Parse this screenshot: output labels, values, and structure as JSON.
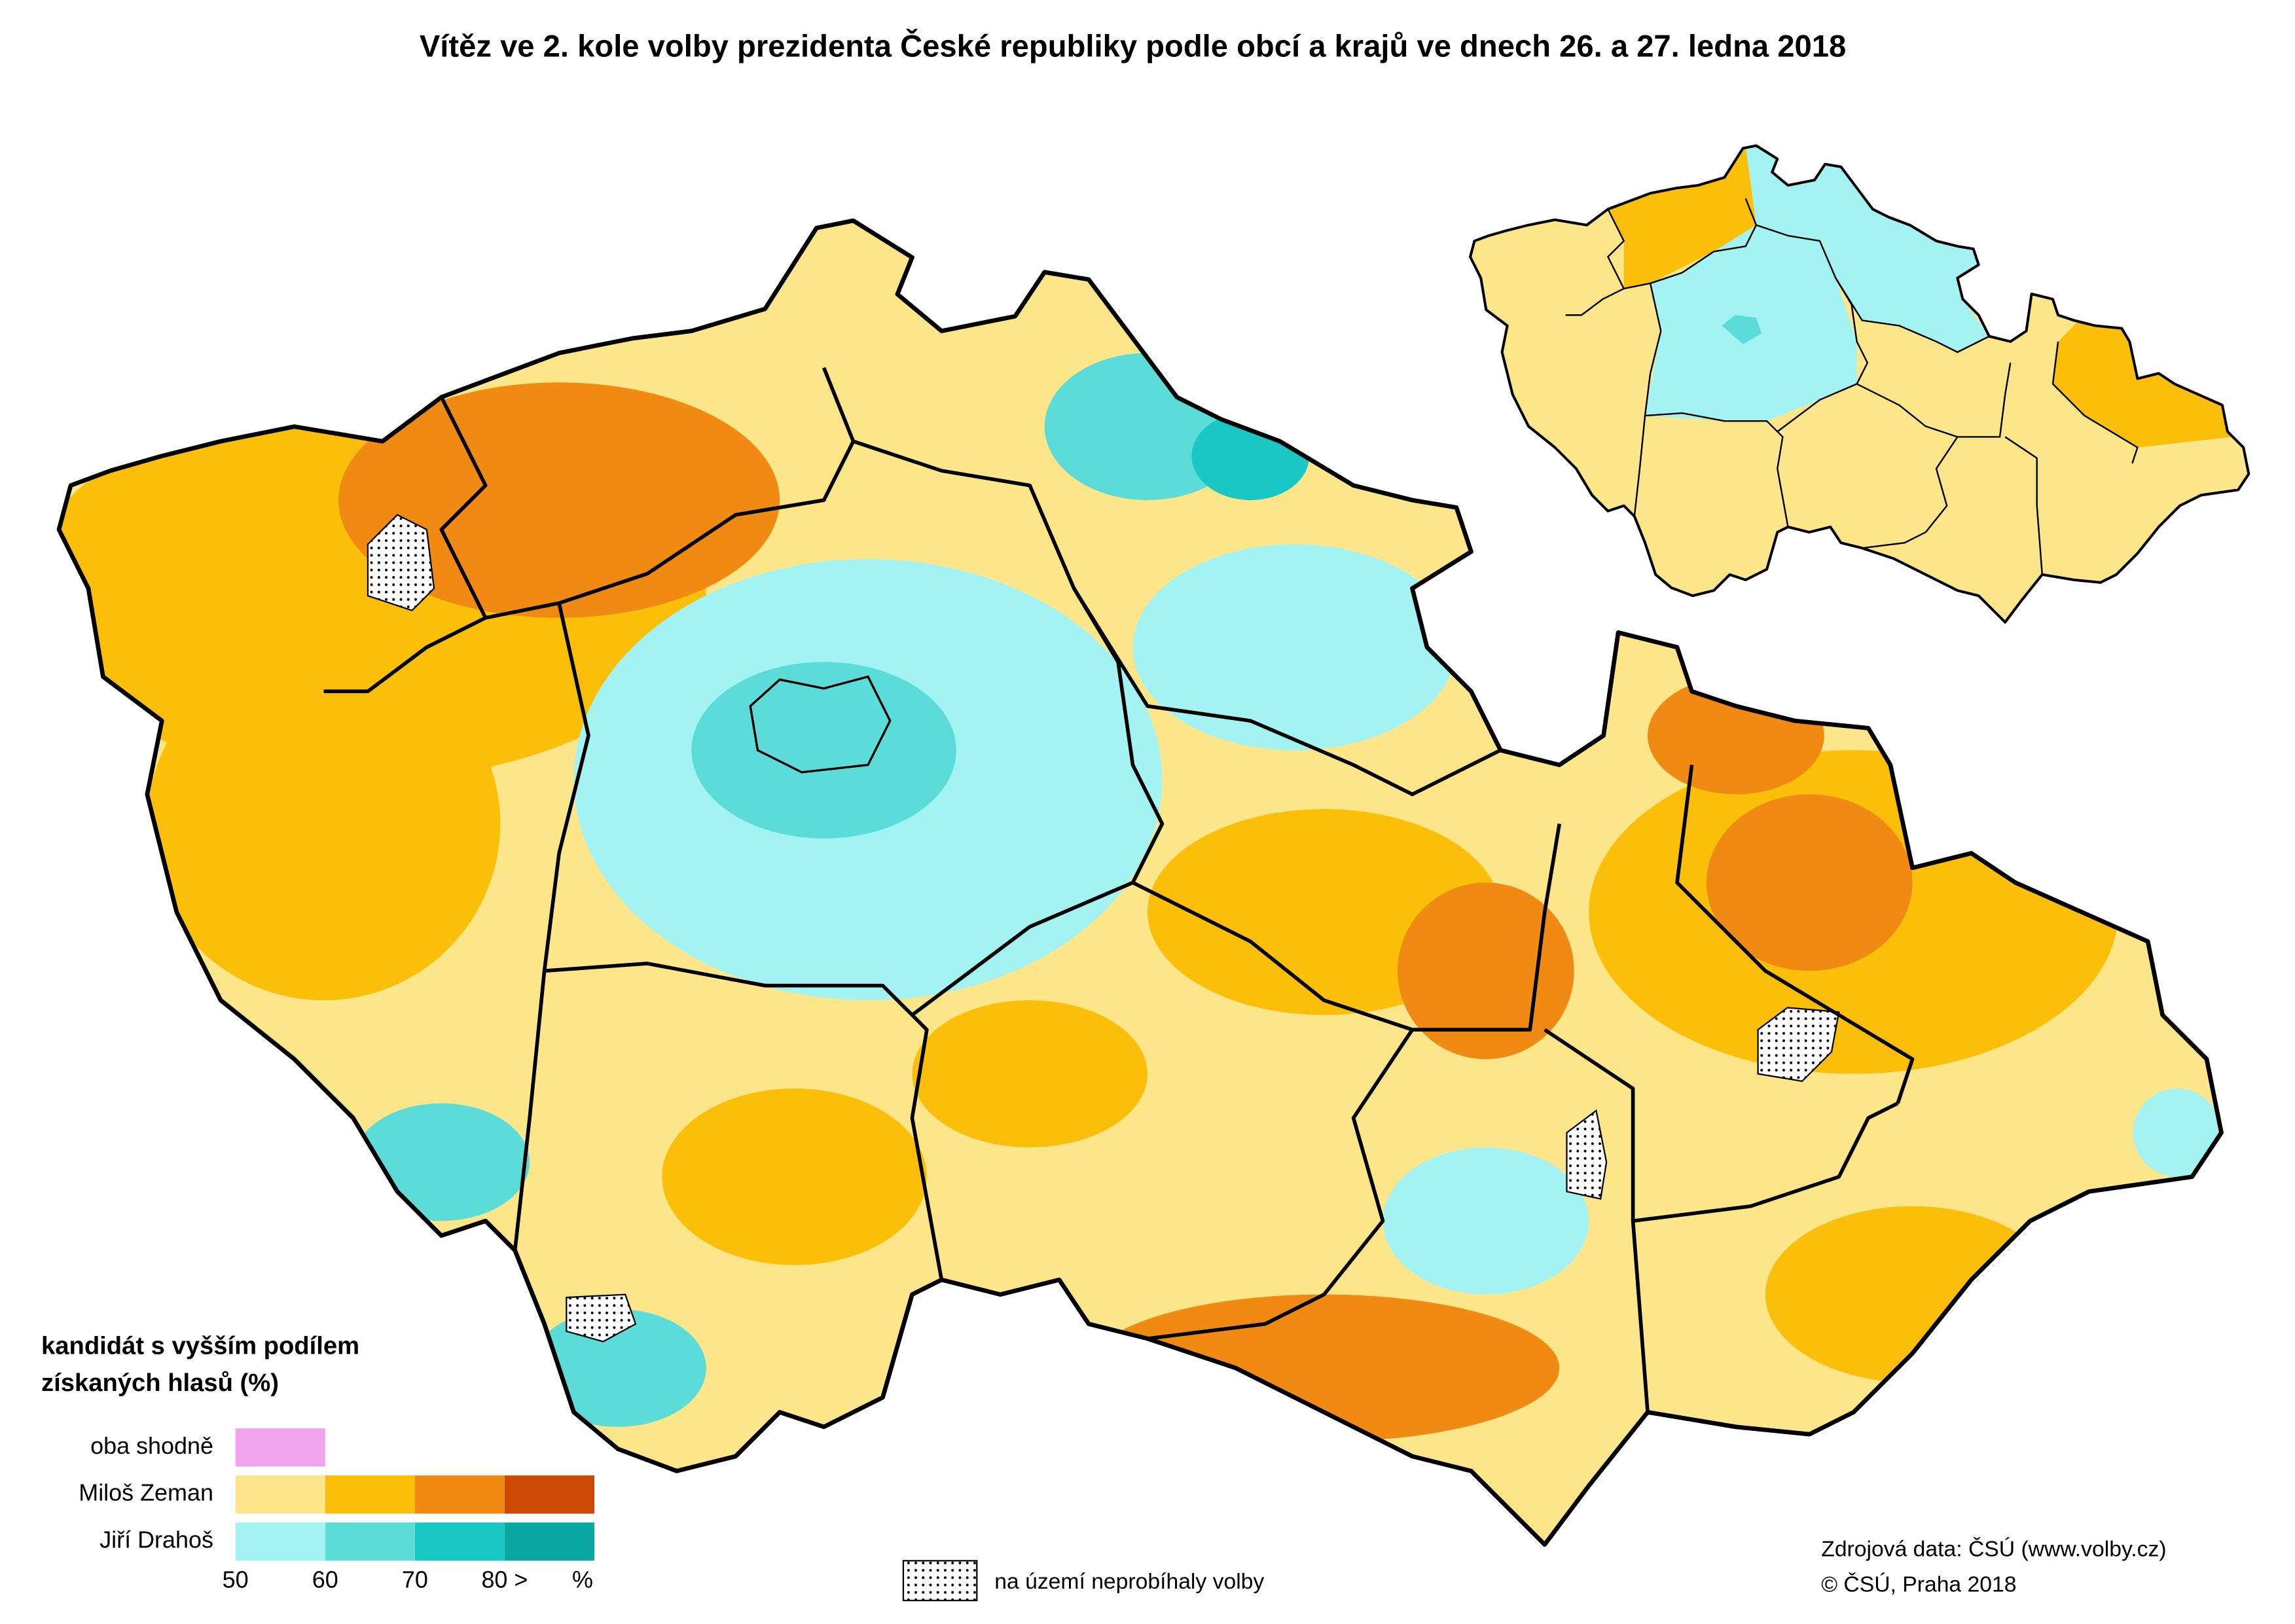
{
  "title": "Vítěz ve 2. kole volby prezidenta České republiky podle obcí a krajů ve dnech 26. a 27. ledna 2018",
  "legend": {
    "title_lines": [
      "kandidát s vyšším podílem",
      "získaných hlasů (%)"
    ],
    "rows": [
      {
        "label": "oba shodně",
        "colors": [
          "#f0a3ee"
        ]
      },
      {
        "label": "Miloš Zeman",
        "colors": [
          "#fde68a",
          "#fbbf0a",
          "#f08a12",
          "#cc4a06"
        ]
      },
      {
        "label": "Jiří Drahoš",
        "colors": [
          "#a3f3f3",
          "#5cdcd8",
          "#19c8c4",
          "#0aa8a3"
        ]
      }
    ],
    "scale": [
      50,
      60,
      70,
      {
        "value": 80,
        "label": "80 >"
      }
    ],
    "unit": "%"
  },
  "no_election_label": "na území neprobíhaly volby",
  "source": [
    "Zdrojová data: ČSÚ (www.volby.cz)",
    "© ČSÚ, Praha 2018"
  ]
}
